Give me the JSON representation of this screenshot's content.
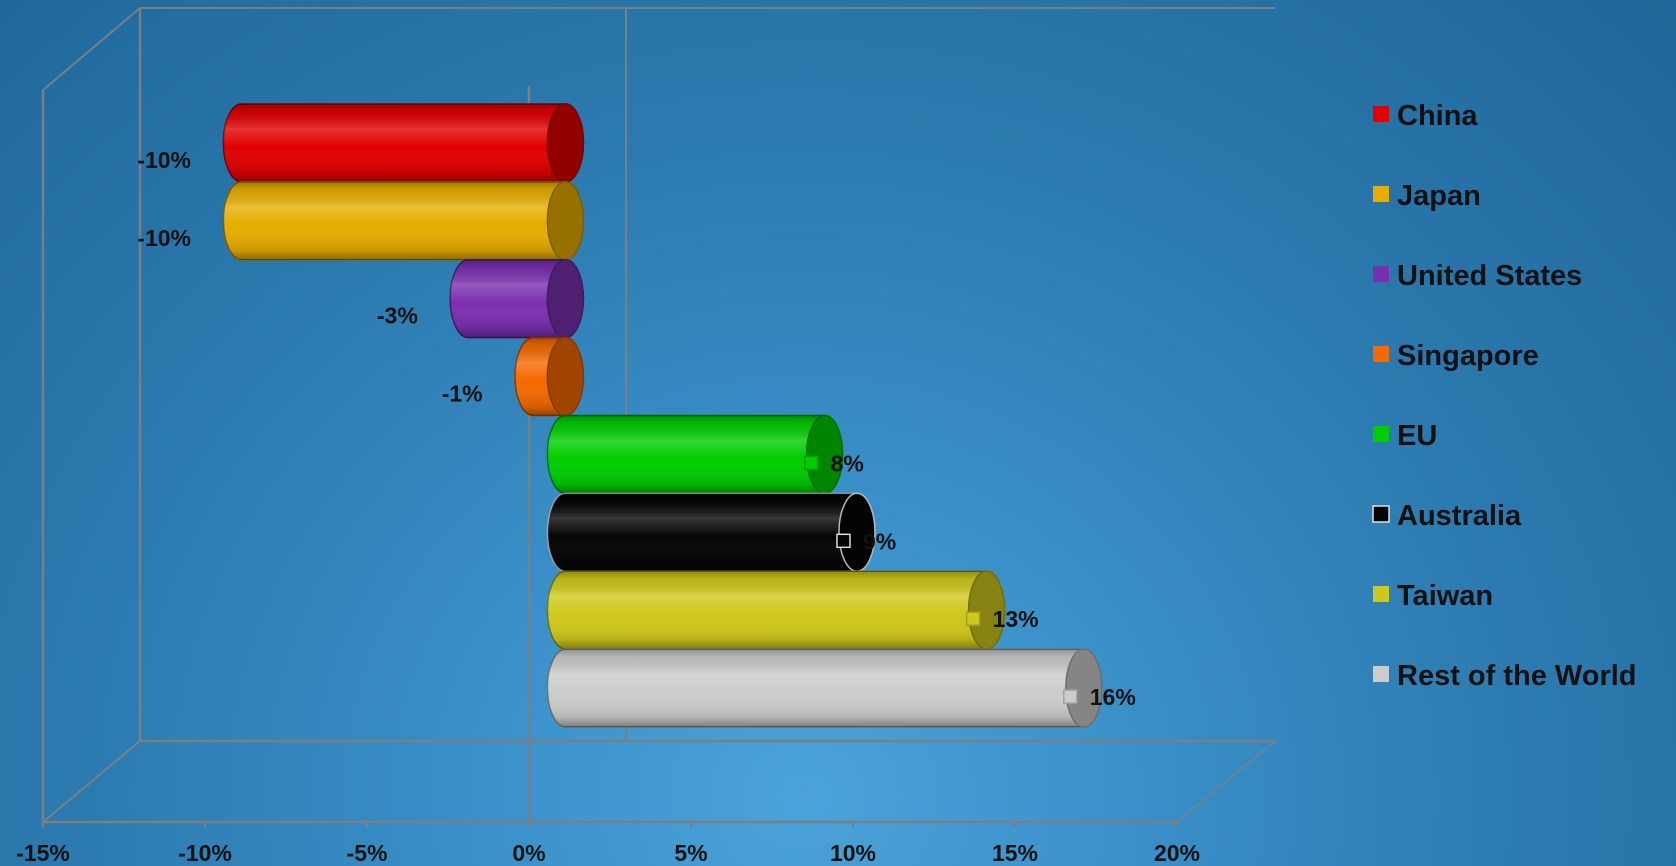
{
  "chart_data": {
    "type": "bar",
    "orientation": "horizontal",
    "style": "3d-cylinder",
    "categories": [
      "China",
      "Japan",
      "United States",
      "Singapore",
      "EU",
      "Australia",
      "Taiwan",
      "Rest of the World"
    ],
    "values": [
      -10,
      -10,
      -3,
      -1,
      8,
      9,
      13,
      16
    ],
    "data_labels": [
      "-10%",
      "-10%",
      "-3%",
      "-1%",
      "8%",
      "9%",
      "13%",
      "16%"
    ],
    "colors": [
      "#e00000",
      "#e6ad00",
      "#7a2fb0",
      "#f56a00",
      "#00cc00",
      "#050505",
      "#cfc81c",
      "#cccccc"
    ],
    "xlim": [
      -15,
      20
    ],
    "xticks": [
      -15,
      -10,
      -5,
      0,
      5,
      10,
      15,
      20
    ],
    "xtick_labels": [
      "-15%",
      "-10%",
      "-5%",
      "0%",
      "5%",
      "10%",
      "15%",
      "20%"
    ],
    "title": "",
    "xlabel": "",
    "ylabel": "",
    "legend": {
      "position": "right",
      "entries": [
        "China",
        "Japan",
        "United States",
        "Singapore",
        "EU",
        "Australia",
        "Taiwan",
        "Rest of the World"
      ]
    },
    "grid": false
  }
}
